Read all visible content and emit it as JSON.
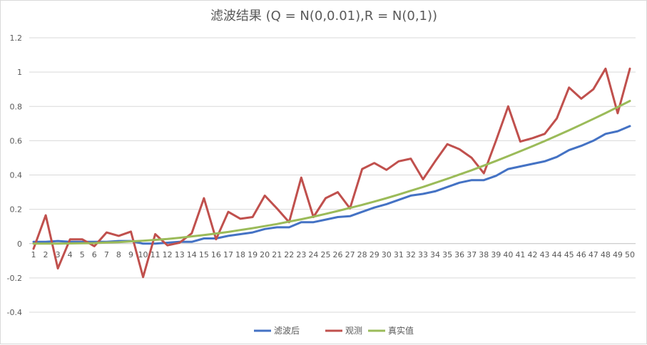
{
  "chart_data": {
    "type": "line",
    "title": "滤波结果 (Q = N(0,0.01),R = N(0,1))",
    "xlabel": "",
    "ylabel": "",
    "ylim": [
      -0.4,
      1.2
    ],
    "yticks": [
      "-0.4",
      "-0.2",
      "0",
      "0.2",
      "0.4",
      "0.6",
      "0.8",
      "1",
      "1.2"
    ],
    "grid": true,
    "legend_position": "bottom",
    "categories": [
      "1",
      "2",
      "3",
      "4",
      "5",
      "6",
      "7",
      "8",
      "9",
      "10",
      "11",
      "12",
      "13",
      "14",
      "15",
      "16",
      "17",
      "18",
      "19",
      "20",
      "21",
      "22",
      "23",
      "24",
      "25",
      "26",
      "27",
      "28",
      "29",
      "30",
      "31",
      "32",
      "33",
      "34",
      "35",
      "36",
      "37",
      "38",
      "39",
      "40",
      "41",
      "42",
      "43",
      "44",
      "45",
      "46",
      "47",
      "48",
      "49",
      "50"
    ],
    "series": [
      {
        "name": "滤波后",
        "color": "#4472c4",
        "values": [
          0.01,
          0.01,
          0.015,
          0.01,
          0.01,
          0.01,
          0.01,
          0.015,
          0.015,
          0.0,
          0.0,
          0.005,
          0.01,
          0.01,
          0.03,
          0.03,
          0.045,
          0.055,
          0.065,
          0.085,
          0.095,
          0.095,
          0.125,
          0.125,
          0.14,
          0.155,
          0.16,
          0.185,
          0.21,
          0.23,
          0.255,
          0.28,
          0.29,
          0.305,
          0.33,
          0.355,
          0.37,
          0.37,
          0.395,
          0.435,
          0.45,
          0.465,
          0.48,
          0.505,
          0.545,
          0.57,
          0.6,
          0.64,
          0.655,
          0.685
        ]
      },
      {
        "name": "观测",
        "color": "#c0504d",
        "values": [
          -0.03,
          0.165,
          -0.145,
          0.025,
          0.025,
          -0.015,
          0.065,
          0.045,
          0.07,
          -0.195,
          0.055,
          -0.01,
          0.005,
          0.06,
          0.265,
          0.025,
          0.185,
          0.145,
          0.155,
          0.28,
          0.205,
          0.125,
          0.385,
          0.155,
          0.265,
          0.3,
          0.205,
          0.435,
          0.47,
          0.43,
          0.48,
          0.495,
          0.375,
          0.48,
          0.58,
          0.55,
          0.5,
          0.41,
          0.6,
          0.8,
          0.595,
          0.615,
          0.64,
          0.73,
          0.91,
          0.845,
          0.9,
          1.02,
          0.76,
          1.02
        ]
      },
      {
        "name": "真实值",
        "color": "#9bbb59",
        "values": [
          0.0,
          0.0,
          0.0,
          0.001,
          0.002,
          0.003,
          0.006,
          0.008,
          0.013,
          0.017,
          0.022,
          0.027,
          0.034,
          0.042,
          0.05,
          0.059,
          0.068,
          0.079,
          0.09,
          0.102,
          0.114,
          0.128,
          0.142,
          0.157,
          0.173,
          0.19,
          0.208,
          0.226,
          0.245,
          0.265,
          0.286,
          0.308,
          0.33,
          0.354,
          0.378,
          0.403,
          0.428,
          0.455,
          0.482,
          0.51,
          0.539,
          0.568,
          0.598,
          0.629,
          0.661,
          0.694,
          0.727,
          0.761,
          0.796,
          0.832
        ]
      }
    ]
  }
}
